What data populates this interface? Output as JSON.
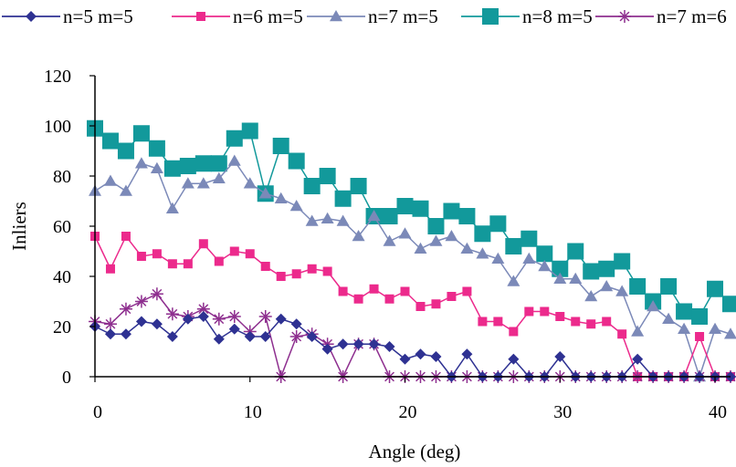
{
  "chart_data": {
    "type": "line",
    "xlabel": "Angle (deg)",
    "ylabel": "Inliers",
    "xlim": [
      0,
      41
    ],
    "ylim": [
      0,
      120
    ],
    "xticks": [
      0,
      10,
      20,
      30,
      40
    ],
    "yticks": [
      0,
      20,
      40,
      60,
      80,
      100,
      120
    ],
    "grid": false,
    "legend_position": "top",
    "x": [
      0,
      1,
      2,
      3,
      4,
      5,
      6,
      7,
      8,
      9,
      10,
      11,
      12,
      13,
      14,
      15,
      16,
      17,
      18,
      19,
      20,
      21,
      22,
      23,
      24,
      25,
      26,
      27,
      28,
      29,
      30,
      31,
      32,
      33,
      34,
      35,
      36,
      37,
      38,
      39,
      40,
      41
    ],
    "series": [
      {
        "name": "n=5 m=5",
        "color": "#2e3192",
        "marker": "diamond",
        "markersize": 6,
        "values": [
          20,
          17,
          17,
          22,
          21,
          16,
          23,
          24,
          15,
          19,
          16,
          16,
          23,
          21,
          16,
          11,
          13,
          13,
          13,
          12,
          7,
          9,
          8,
          0,
          9,
          0,
          0,
          7,
          0,
          0,
          8,
          0,
          0,
          0,
          0,
          7,
          0,
          0,
          0,
          0,
          0,
          0
        ]
      },
      {
        "name": "n=6 m=5",
        "color": "#ec2a8c",
        "marker": "square",
        "markersize": 5,
        "values": [
          56,
          43,
          56,
          48,
          49,
          45,
          45,
          53,
          46,
          50,
          49,
          44,
          40,
          41,
          43,
          42,
          34,
          31,
          35,
          31,
          34,
          28,
          29,
          32,
          34,
          22,
          22,
          18,
          26,
          26,
          24,
          22,
          21,
          22,
          17,
          0,
          0,
          0,
          0,
          16,
          0,
          0
        ]
      },
      {
        "name": "n=7 m=5",
        "color": "#7b89b8",
        "marker": "triangle",
        "markersize": 7,
        "values": [
          74,
          78,
          74,
          85,
          83,
          67,
          77,
          77,
          79,
          86,
          77,
          73,
          71,
          68,
          62,
          63,
          62,
          56,
          64,
          54,
          57,
          51,
          54,
          56,
          51,
          49,
          47,
          38,
          47,
          44,
          39,
          39,
          32,
          36,
          34,
          18,
          28,
          23,
          19,
          0,
          19,
          17
        ]
      },
      {
        "name": "n=8 m=5",
        "color": "#12999b",
        "marker": "square",
        "markersize": 9,
        "values": [
          99,
          94,
          90,
          97,
          91,
          83,
          84,
          85,
          85,
          95,
          98,
          73,
          92,
          86,
          76,
          80,
          71,
          76,
          64,
          64,
          68,
          67,
          60,
          66,
          64,
          57,
          61,
          52,
          55,
          49,
          43,
          50,
          42,
          43,
          46,
          36,
          30,
          36,
          26,
          24,
          35,
          29
        ]
      },
      {
        "name": "n=7 m=6",
        "color": "#8e2f8f",
        "marker": "asterisk",
        "markersize": 7,
        "values": [
          22,
          21,
          27,
          30,
          33,
          25,
          24,
          27,
          23,
          24,
          18,
          24,
          0,
          16,
          17,
          13,
          0,
          13,
          13,
          0,
          0,
          0,
          0,
          0,
          0,
          0,
          0,
          0,
          0,
          0,
          0,
          0,
          0,
          0,
          0,
          0,
          0,
          0,
          0,
          0,
          0,
          0
        ]
      }
    ]
  }
}
